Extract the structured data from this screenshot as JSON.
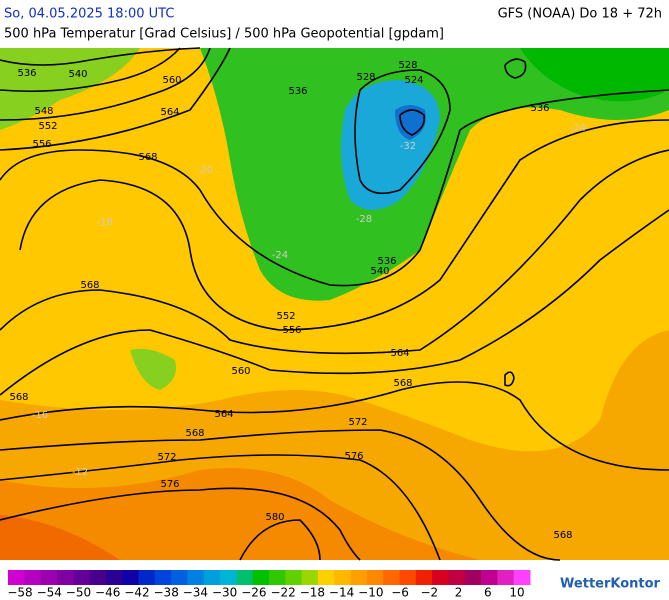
{
  "header": {
    "date": "So, 04.05.2025 18:00 UTC",
    "model": "GFS (NOAA) Do 18 + 72h",
    "subtitle": "500 hPa Temperatur [Grad Celsius] / 500 hPa Geopotential [gpdam]"
  },
  "contour_labels": [
    "536",
    "540",
    "548",
    "552",
    "556",
    "560",
    "564",
    "568",
    "568",
    "568",
    "528",
    "528",
    "524",
    "536",
    "536",
    "540",
    "536",
    "552",
    "556",
    "560",
    "564",
    "564",
    "568",
    "568",
    "572",
    "572",
    "576",
    "576",
    "580",
    "568"
  ],
  "temperature_labels": [
    "-32",
    "-28",
    "-24",
    "-24",
    "-20",
    "-16",
    "-12",
    "-16"
  ],
  "colorbar": {
    "labels": [
      "−58",
      "−54",
      "−50",
      "−46",
      "−42",
      "−38",
      "−34",
      "−30",
      "−26",
      "−22",
      "−18",
      "−14",
      "−10",
      "−6",
      "−2",
      "2",
      "6",
      "10"
    ]
  },
  "brand": "WetterKontor"
}
